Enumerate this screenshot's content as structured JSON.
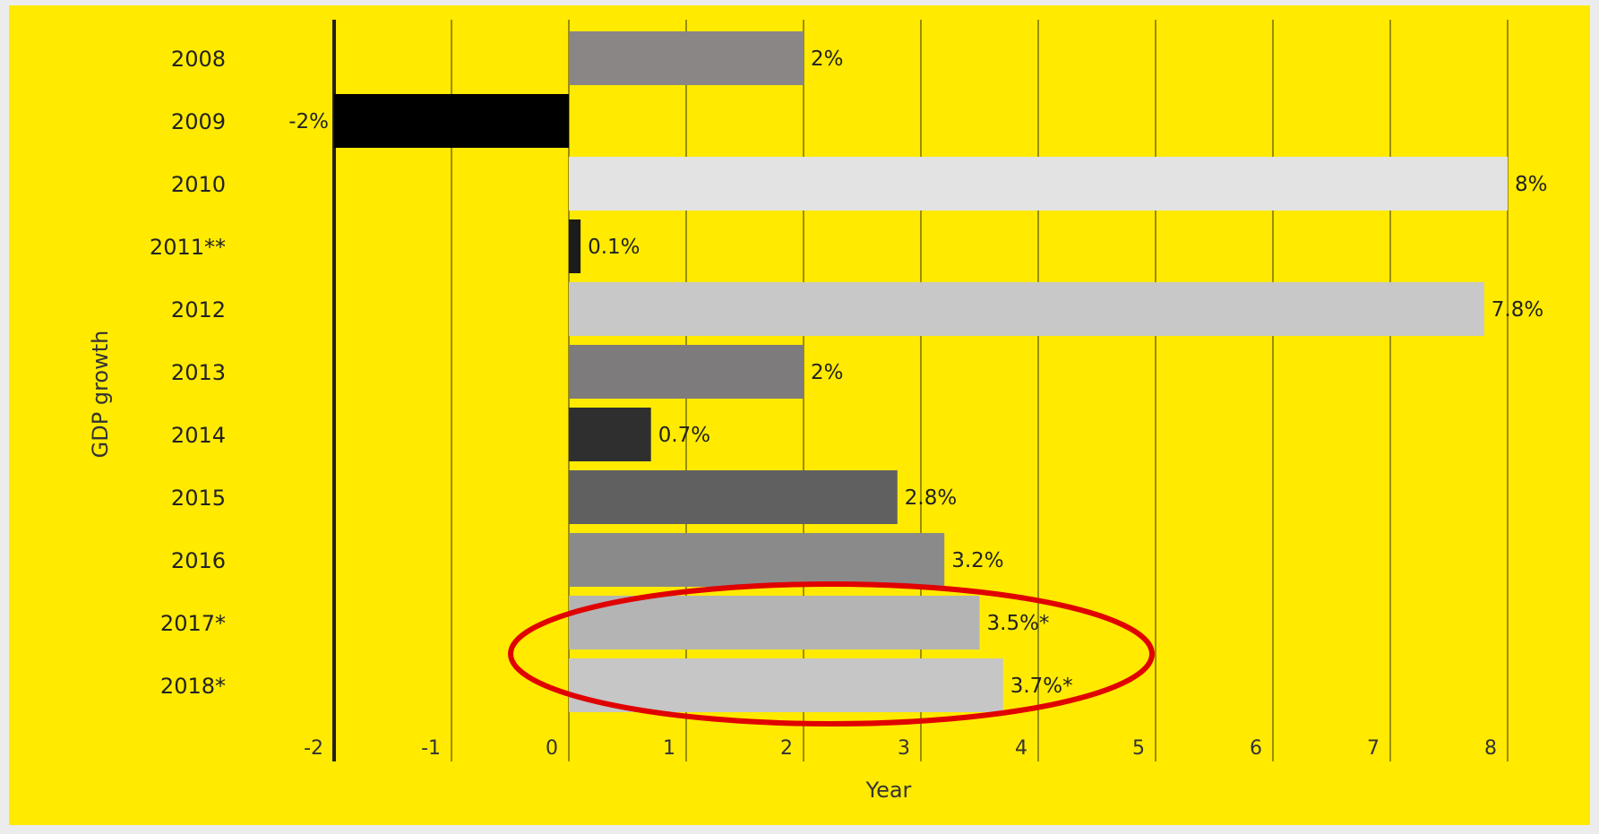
{
  "chart_data": {
    "type": "bar",
    "orientation": "horizontal",
    "title": "",
    "xlabel": "Year",
    "ylabel": "GDP growth",
    "xlim": [
      -2,
      8
    ],
    "xticks": [
      "-2",
      "-1",
      "0",
      "1",
      "2",
      "3",
      "4",
      "5",
      "6",
      "7",
      "8"
    ],
    "grid": true,
    "categories": [
      "2008",
      "2009",
      "2010",
      "2011**",
      "2012",
      "2013",
      "2014",
      "2015",
      "2016",
      "2017*",
      "2018*"
    ],
    "values": [
      2,
      -2,
      8,
      0.1,
      7.8,
      2,
      0.7,
      2.8,
      3.2,
      3.5,
      3.7
    ],
    "value_labels": [
      "2%",
      "-2%",
      "8%",
      "0.1%",
      "7.8%",
      "2%",
      "0.7%",
      "2.8%",
      "3.2%",
      "3.5%*",
      "3.7%*"
    ],
    "bar_colors": [
      "#8a8685",
      "#000000",
      "#e3e3e3",
      "#1c1c1c",
      "#c8c8c8",
      "#7d7b7b",
      "#2f2f2f",
      "#606060",
      "#8a8a8a",
      "#b4b4b4",
      "#c6c6c6"
    ],
    "background_color": "#ffea00",
    "annotation": {
      "shape": "ellipse",
      "color": "#e00000",
      "highlights": [
        "2017*",
        "2018*"
      ]
    }
  }
}
